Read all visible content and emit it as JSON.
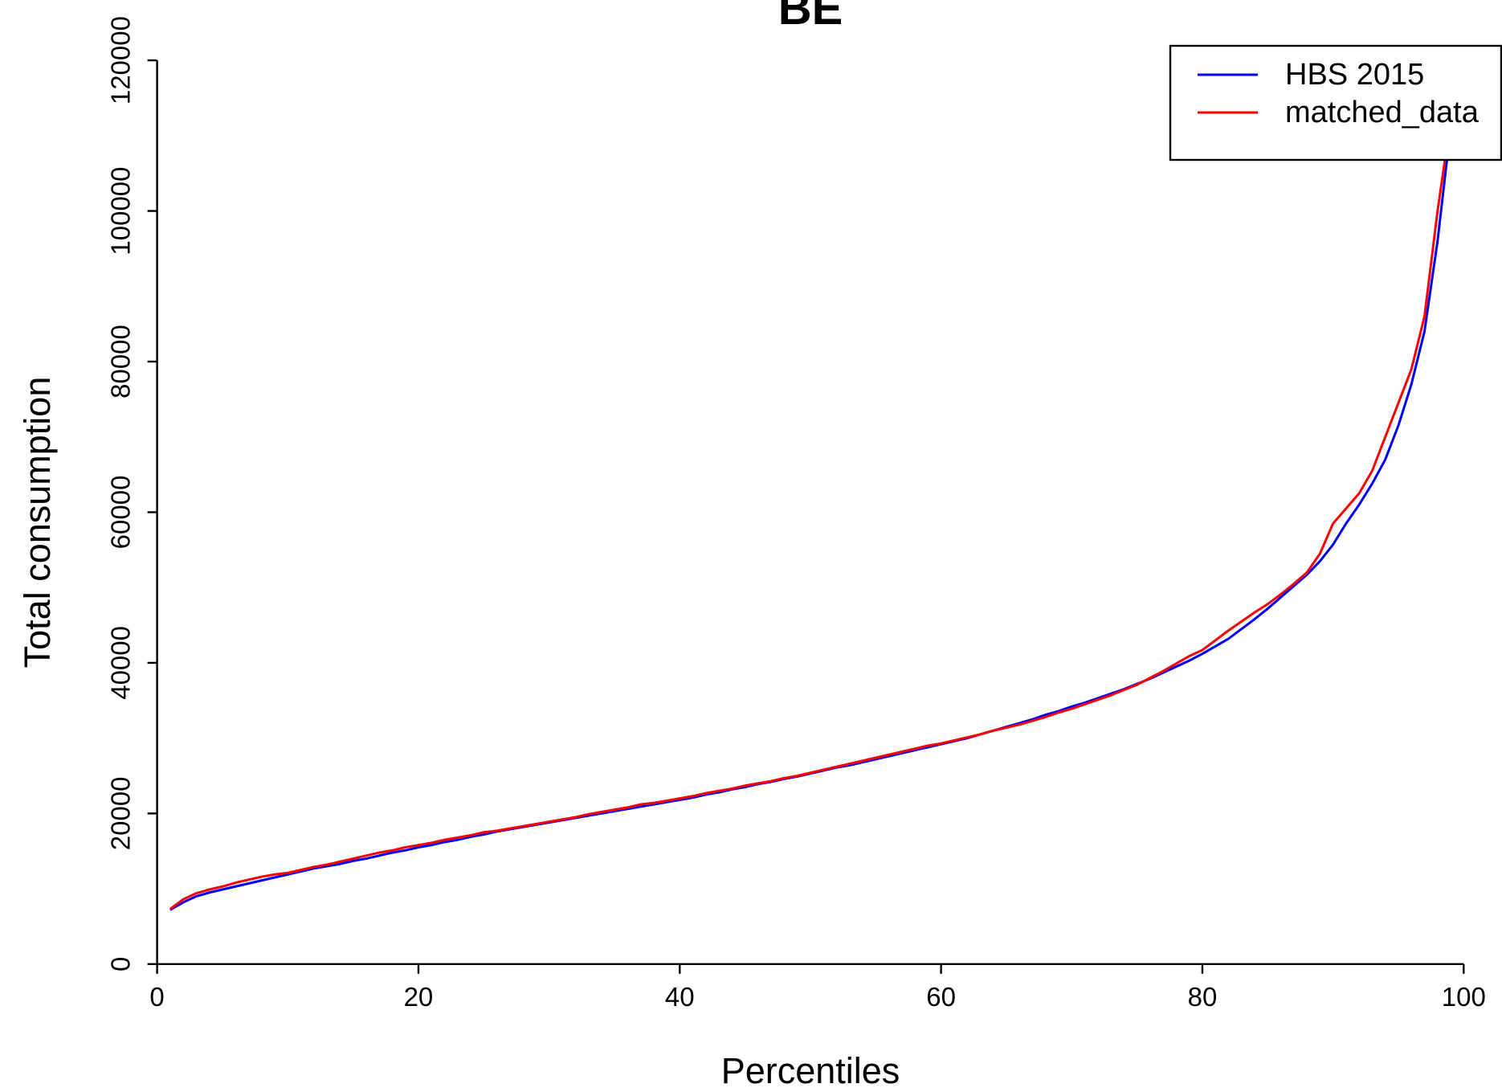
{
  "chart_data": {
    "type": "line",
    "title": "BE",
    "xlabel": "Percentiles",
    "ylabel": "Total consumption",
    "x": [
      1,
      2,
      3,
      4,
      5,
      6,
      7,
      8,
      9,
      10,
      11,
      12,
      13,
      14,
      15,
      16,
      17,
      18,
      19,
      20,
      21,
      22,
      23,
      24,
      25,
      26,
      27,
      28,
      29,
      30,
      31,
      32,
      33,
      34,
      35,
      36,
      37,
      38,
      39,
      40,
      41,
      42,
      43,
      44,
      45,
      46,
      47,
      48,
      49,
      50,
      51,
      52,
      53,
      54,
      55,
      56,
      57,
      58,
      59,
      60,
      61,
      62,
      63,
      64,
      65,
      66,
      67,
      68,
      69,
      70,
      71,
      72,
      73,
      74,
      75,
      76,
      77,
      78,
      79,
      80,
      81,
      82,
      83,
      84,
      85,
      86,
      87,
      88,
      89,
      90,
      91,
      92,
      93,
      94,
      95,
      96,
      97,
      98,
      99
    ],
    "series": [
      {
        "name": "HBS 2015",
        "color": "#0000ff",
        "values": [
          7200,
          8200,
          9000,
          9500,
          9900,
          10300,
          10700,
          11100,
          11500,
          11900,
          12300,
          12700,
          13000,
          13300,
          13700,
          14000,
          14400,
          14800,
          15100,
          15500,
          15800,
          16200,
          16500,
          16900,
          17200,
          17600,
          17900,
          18200,
          18500,
          18800,
          19100,
          19400,
          19700,
          20000,
          20300,
          20600,
          20900,
          21200,
          21500,
          21800,
          22100,
          22500,
          22800,
          23200,
          23500,
          23900,
          24200,
          24600,
          24900,
          25300,
          25700,
          26100,
          26400,
          26800,
          27200,
          27600,
          28000,
          28400,
          28800,
          29200,
          29600,
          30000,
          30500,
          31000,
          31500,
          32000,
          32500,
          33100,
          33600,
          34200,
          34700,
          35300,
          35900,
          36500,
          37200,
          37900,
          38700,
          39500,
          40300,
          41200,
          42200,
          43200,
          44500,
          45800,
          47200,
          48700,
          50200,
          51700,
          53500,
          55700,
          58500,
          61000,
          63800,
          67000,
          71500,
          77000,
          84000,
          96000,
          111000
        ]
      },
      {
        "name": "matched_data",
        "color": "#ff0000",
        "values": [
          7300,
          8600,
          9400,
          9900,
          10300,
          10800,
          11200,
          11600,
          11900,
          12100,
          12500,
          12900,
          13200,
          13600,
          14000,
          14400,
          14800,
          15100,
          15500,
          15800,
          16100,
          16500,
          16800,
          17100,
          17500,
          17700,
          18000,
          18300,
          18600,
          18900,
          19200,
          19500,
          19900,
          20200,
          20500,
          20800,
          21200,
          21400,
          21700,
          22000,
          22300,
          22700,
          23000,
          23300,
          23700,
          24000,
          24300,
          24700,
          25000,
          25400,
          25800,
          26200,
          26600,
          27000,
          27400,
          27800,
          28200,
          28600,
          29000,
          29300,
          29700,
          30100,
          30500,
          31000,
          31400,
          31800,
          32300,
          32800,
          33400,
          33900,
          34500,
          35100,
          35700,
          36400,
          37100,
          38000,
          38900,
          39900,
          40900,
          41700,
          43000,
          44300,
          45500,
          46700,
          47800,
          49100,
          50500,
          52000,
          54500,
          58500,
          60500,
          62500,
          65500,
          70000,
          74500,
          79000,
          86000,
          100000,
          112000
        ]
      }
    ],
    "xlim": [
      0,
      100
    ],
    "xticks": [
      0,
      20,
      40,
      60,
      80,
      100
    ],
    "ylim": [
      0,
      120000
    ],
    "yticks": [
      0,
      20000,
      40000,
      60000,
      80000,
      100000,
      120000
    ],
    "legend": "topright"
  }
}
